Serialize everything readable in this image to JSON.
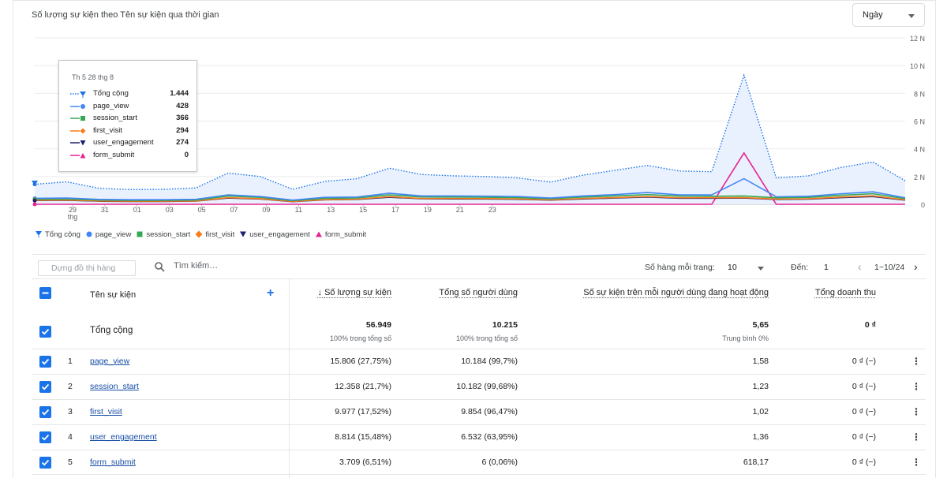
{
  "card": {
    "title": "Số lượng sự kiện theo Tên sự kiện qua thời gian",
    "granularity": "Ngày"
  },
  "chart_data": {
    "type": "line",
    "x_labels": [
      "29\nthg",
      "31",
      "01",
      "03",
      "05",
      "07",
      "09",
      "11",
      "13",
      "15",
      "17",
      "19",
      "21",
      "23"
    ],
    "y_ticks": [
      "12 N",
      "10 N",
      "8 N",
      "6 N",
      "4 N",
      "2 N",
      "0"
    ],
    "ylim": [
      0,
      12000
    ],
    "series": [
      {
        "name": "Tổng cộng",
        "color": "#1a73e8",
        "style": "dotted-area",
        "marker": "pin",
        "values": [
          1444,
          1620,
          1150,
          1060,
          1080,
          1180,
          2250,
          2000,
          1080,
          1650,
          1850,
          2600,
          2150,
          2050,
          2000,
          1900,
          1600,
          2100,
          2450,
          2800,
          2400,
          2350,
          9300,
          1900,
          2050,
          2650,
          3050,
          1700
        ]
      },
      {
        "name": "page_view",
        "color": "#4285f4",
        "style": "solid",
        "marker": "circle",
        "values": [
          428,
          450,
          350,
          330,
          330,
          360,
          680,
          560,
          300,
          500,
          520,
          800,
          600,
          600,
          590,
          560,
          450,
          600,
          700,
          850,
          680,
          680,
          1850,
          540,
          580,
          760,
          900,
          470
        ]
      },
      {
        "name": "session_start",
        "color": "#34a853",
        "style": "solid",
        "marker": "square",
        "values": [
          366,
          380,
          300,
          280,
          280,
          300,
          600,
          500,
          260,
          430,
          460,
          680,
          530,
          520,
          510,
          480,
          400,
          520,
          600,
          700,
          590,
          580,
          600,
          470,
          500,
          650,
          760,
          400
        ]
      },
      {
        "name": "first_visit",
        "color": "#fa7b17",
        "style": "solid",
        "marker": "diamond",
        "values": [
          294,
          310,
          240,
          220,
          220,
          240,
          480,
          400,
          200,
          340,
          370,
          550,
          420,
          420,
          410,
          390,
          320,
          420,
          480,
          560,
          470,
          470,
          480,
          380,
          400,
          520,
          610,
          320
        ]
      },
      {
        "name": "user_engagement",
        "color": "#1f1f70",
        "style": "solid",
        "marker": "triangle-down",
        "values": [
          274,
          290,
          220,
          200,
          200,
          230,
          450,
          380,
          190,
          320,
          350,
          510,
          400,
          390,
          380,
          360,
          300,
          390,
          450,
          520,
          440,
          440,
          450,
          350,
          370,
          480,
          560,
          300
        ]
      },
      {
        "name": "form_submit",
        "color": "#e52592",
        "style": "solid",
        "marker": "triangle-up",
        "values": [
          0,
          0,
          0,
          0,
          0,
          0,
          0,
          0,
          0,
          0,
          0,
          0,
          0,
          0,
          0,
          0,
          0,
          0,
          0,
          0,
          0,
          0,
          3700,
          0,
          0,
          0,
          0,
          0
        ]
      }
    ],
    "legend_placement": "bottom-left",
    "grid": true
  },
  "tooltip": {
    "date": "Th 5 28 thg 8",
    "rows": [
      {
        "name": "Tổng cộng",
        "value": "1.444"
      },
      {
        "name": "page_view",
        "value": "428"
      },
      {
        "name": "session_start",
        "value": "366"
      },
      {
        "name": "first_visit",
        "value": "294"
      },
      {
        "name": "user_engagement",
        "value": "274"
      },
      {
        "name": "form_submit",
        "value": "0"
      }
    ]
  },
  "legend": [
    "Tổng cộng",
    "page_view",
    "session_start",
    "first_visit",
    "user_engagement",
    "form_submit"
  ],
  "toolbar": {
    "plot_rows_label": "Dựng đồ thị hàng",
    "search_placeholder": "Tìm kiếm…",
    "rows_per_page_label": "Số hàng mỗi trang:",
    "rows_per_page_value": "10",
    "goto_label": "Đến:",
    "goto_value": "1",
    "page_range": "1−10/24"
  },
  "table": {
    "headers": {
      "name": "Tên sự kiện",
      "event_count": "Số lượng sự kiện",
      "total_users": "Tổng số người dùng",
      "events_per_user": "Số sự kiện trên mỗi người dùng đang hoạt động",
      "revenue": "Tổng doanh thu"
    },
    "totals": {
      "label": "Tổng cộng",
      "event_count": "56.949",
      "event_count_sub": "100% trong tổng số",
      "total_users": "10.215",
      "total_users_sub": "100% trong tổng số",
      "events_per_user": "5,65",
      "events_per_user_sub": "Trung bình 0%",
      "revenue": "0 ₫"
    },
    "rows": [
      {
        "num": "1",
        "name": "page_view",
        "event_count": "15.806 (27,75%)",
        "total_users": "10.184 (99,7%)",
        "events_per_user": "1,58",
        "revenue": "0 ₫ (−)"
      },
      {
        "num": "2",
        "name": "session_start",
        "event_count": "12.358 (21,7%)",
        "total_users": "10.182 (99,68%)",
        "events_per_user": "1,23",
        "revenue": "0 ₫ (−)"
      },
      {
        "num": "3",
        "name": "first_visit",
        "event_count": "9.977 (17,52%)",
        "total_users": "9.854 (96,47%)",
        "events_per_user": "1,02",
        "revenue": "0 ₫ (−)"
      },
      {
        "num": "4",
        "name": "user_engagement",
        "event_count": "8.814 (15,48%)",
        "total_users": "6.532 (63,95%)",
        "events_per_user": "1,36",
        "revenue": "0 ₫ (−)"
      },
      {
        "num": "5",
        "name": "form_submit",
        "event_count": "3.709 (6,51%)",
        "total_users": "6 (0,06%)",
        "events_per_user": "618,17",
        "revenue": "0 ₫ (−)"
      }
    ]
  }
}
